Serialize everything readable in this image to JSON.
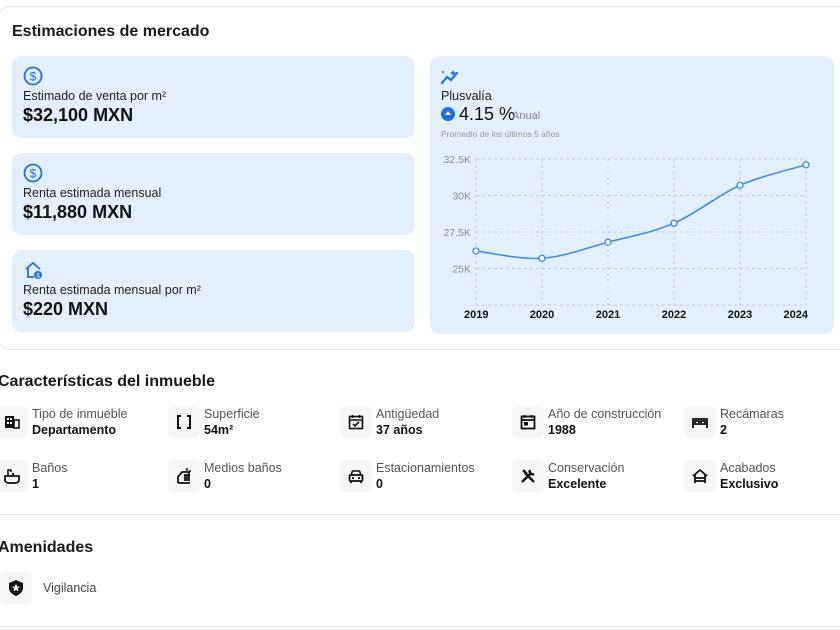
{
  "market": {
    "title": "Estimaciones de mercado",
    "cards": [
      {
        "label": "Estimado de venta por m²",
        "value": "$32,100 MXN",
        "icon": "dollar-circle-icon"
      },
      {
        "label": "Renta estimada mensual",
        "value": "$11,880 MXN",
        "icon": "dollar-circle-icon"
      },
      {
        "label": "Renta estimada mensual por m²",
        "value": "$220 MXN",
        "icon": "house-dollar-icon"
      }
    ],
    "plusvalia": {
      "label": "Plusvalía",
      "value": "4.15 %",
      "period": "Anual",
      "note": "Promedio de los últimos 5 años",
      "accent": "#1e6ff0"
    }
  },
  "chart_data": {
    "type": "line",
    "title": "Plusvalía",
    "x": [
      "2019",
      "2020",
      "2021",
      "2022",
      "2023",
      "2024"
    ],
    "values": [
      26200,
      25700,
      26800,
      28100,
      30700,
      32100
    ],
    "yticks": [
      "25K",
      "27.5K",
      "30K",
      "32.5K"
    ],
    "ytick_values": [
      25000,
      27500,
      30000,
      32500
    ],
    "ylim": [
      22500,
      32500
    ],
    "grid": true,
    "color": "#3a86f5"
  },
  "features": {
    "title": "Características del inmueble",
    "items": [
      {
        "label": "Tipo de inmueble",
        "value": "Departamento",
        "icon": "building-icon"
      },
      {
        "label": "Superficie",
        "value": "54m²",
        "icon": "brackets-icon"
      },
      {
        "label": "Antigüedad",
        "value": "37 años",
        "icon": "calendar-check-icon"
      },
      {
        "label": "Año de construcción",
        "value": "1988",
        "icon": "calendar-icon"
      },
      {
        "label": "Recámaras",
        "value": "2",
        "icon": "bed-icon"
      },
      {
        "label": "Baños",
        "value": "1",
        "icon": "bathtub-icon"
      },
      {
        "label": "Medios baños",
        "value": "0",
        "icon": "hand-wash-icon"
      },
      {
        "label": "Estacionamientos",
        "value": "0",
        "icon": "car-icon"
      },
      {
        "label": "Conservación",
        "value": "Excelente",
        "icon": "tools-icon"
      },
      {
        "label": "Acabados",
        "value": "Exclusivo",
        "icon": "house-icon"
      }
    ]
  },
  "amenities": {
    "title": "Amenidades",
    "items": [
      {
        "label": "Vigilancia",
        "icon": "shield-star-icon"
      }
    ]
  }
}
